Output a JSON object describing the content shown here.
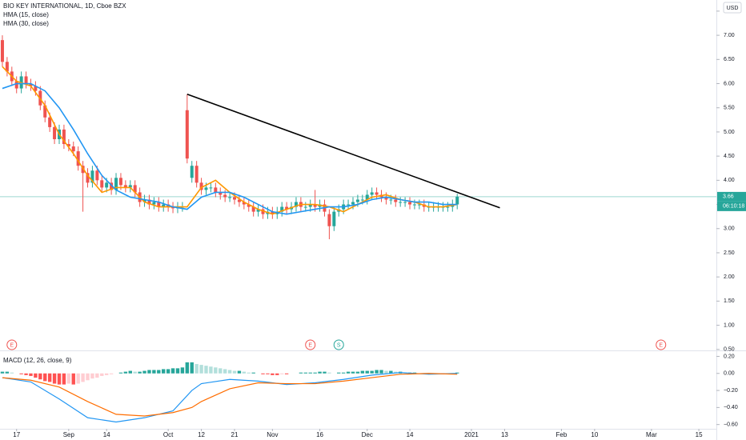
{
  "chart_data": [
    {
      "type": "candlestick",
      "title": "BIO KEY INTERNATIONAL, 1D, Cboe BZX",
      "currency": "USD",
      "xlim": [
        -0.5,
        150.7
      ],
      "xticks": [
        {
          "value": 3,
          "label": "17"
        },
        {
          "value": 14,
          "label": "Sep"
        },
        {
          "value": 22,
          "label": "14"
        },
        {
          "value": 35,
          "label": "Oct"
        },
        {
          "value": 42,
          "label": "12"
        },
        {
          "value": 49,
          "label": "21"
        },
        {
          "value": 57,
          "label": "Nov"
        },
        {
          "value": 67,
          "label": "16"
        },
        {
          "value": 77,
          "label": "Dec"
        },
        {
          "value": 86,
          "label": "14"
        },
        {
          "value": 99,
          "label": "2021"
        },
        {
          "value": 106,
          "label": "13"
        },
        {
          "value": 118,
          "label": "Feb"
        },
        {
          "value": 125,
          "label": "10"
        },
        {
          "value": 137,
          "label": "Mar"
        },
        {
          "value": 147,
          "label": "15"
        }
      ],
      "ylim": [
        0.48,
        7.73
      ],
      "yticks": [
        {
          "value": 0.5,
          "label": "0.50"
        },
        {
          "value": 1,
          "label": "1.00"
        },
        {
          "value": 1.5,
          "label": "1.50"
        },
        {
          "value": 2,
          "label": "2.00"
        },
        {
          "value": 2.5,
          "label": "2.50"
        },
        {
          "value": 3,
          "label": "3.00"
        },
        {
          "value": 3.5,
          "label": "3.50"
        },
        {
          "value": 4,
          "label": "4.00"
        },
        {
          "value": 4.5,
          "label": "4.50"
        },
        {
          "value": 5,
          "label": "5.00"
        },
        {
          "value": 5.5,
          "label": "5.50"
        },
        {
          "value": 6,
          "label": "6.00"
        },
        {
          "value": 6.5,
          "label": "6.50"
        },
        {
          "value": 7,
          "label": "7.00"
        },
        {
          "value": 7.5,
          "label": "7.50"
        }
      ],
      "grid": false,
      "up_color": "#26a69a",
      "down_color": "#ef5350",
      "open": [
        6.9,
        6.45,
        6.25,
        6.05,
        5.9,
        6.15,
        6.0,
        5.95,
        5.85,
        5.55,
        5.3,
        5.1,
        4.85,
        5.05,
        4.75,
        4.7,
        4.6,
        4.3,
        4.15,
        3.95,
        4.2,
        4.0,
        3.85,
        3.95,
        3.8,
        4.05,
        3.9,
        3.85,
        3.9,
        3.75,
        3.55,
        3.6,
        3.5,
        3.55,
        3.45,
        3.5,
        3.45,
        3.42,
        3.45,
        5.45,
        4.05,
        4.3,
        3.95,
        3.8,
        3.85,
        3.85,
        3.75,
        3.7,
        3.65,
        3.65,
        3.6,
        3.55,
        3.5,
        3.45,
        3.35,
        3.4,
        3.3,
        3.35,
        3.3,
        3.35,
        3.45,
        3.4,
        3.45,
        3.55,
        3.45,
        3.45,
        3.5,
        3.45,
        3.5,
        3.3,
        3.05,
        3.35,
        3.4,
        3.5,
        3.5,
        3.55,
        3.6,
        3.6,
        3.7,
        3.75,
        3.7,
        3.65,
        3.6,
        3.6,
        3.55,
        3.55,
        3.55,
        3.5,
        3.5,
        3.5,
        3.45,
        3.45,
        3.45,
        3.45,
        3.45,
        3.45,
        3.5
      ],
      "high": [
        7.0,
        6.55,
        6.35,
        6.15,
        6.25,
        6.25,
        6.1,
        6.05,
        5.95,
        5.65,
        5.4,
        5.2,
        5.15,
        5.15,
        4.85,
        4.8,
        4.7,
        4.4,
        4.25,
        4.3,
        4.3,
        4.1,
        4.05,
        4.05,
        4.15,
        4.15,
        4.0,
        4.0,
        4.0,
        3.85,
        3.7,
        3.7,
        3.65,
        3.65,
        3.6,
        3.6,
        3.55,
        3.55,
        3.55,
        5.78,
        4.4,
        4.4,
        4.05,
        3.95,
        3.95,
        3.95,
        3.85,
        3.8,
        3.75,
        3.75,
        3.7,
        3.65,
        3.6,
        3.55,
        3.5,
        3.5,
        3.45,
        3.45,
        3.45,
        3.55,
        3.55,
        3.55,
        3.65,
        3.65,
        3.55,
        3.6,
        3.8,
        3.6,
        3.6,
        3.4,
        3.45,
        3.5,
        3.6,
        3.6,
        3.65,
        3.7,
        3.7,
        3.8,
        3.85,
        3.85,
        3.8,
        3.75,
        3.7,
        3.7,
        3.65,
        3.65,
        3.65,
        3.6,
        3.6,
        3.6,
        3.55,
        3.55,
        3.55,
        3.55,
        3.55,
        3.6,
        3.72
      ],
      "low": [
        6.35,
        6.15,
        5.95,
        5.8,
        5.8,
        5.9,
        5.85,
        5.75,
        5.45,
        5.2,
        5.0,
        4.75,
        4.75,
        4.65,
        4.6,
        4.5,
        4.2,
        3.35,
        3.85,
        3.85,
        3.9,
        3.75,
        3.75,
        3.7,
        3.7,
        3.8,
        3.75,
        3.75,
        3.65,
        3.45,
        3.45,
        3.4,
        3.4,
        3.35,
        3.35,
        3.35,
        3.32,
        3.32,
        3.35,
        4.35,
        3.95,
        3.85,
        3.7,
        3.7,
        3.75,
        3.65,
        3.6,
        3.55,
        3.55,
        3.5,
        3.45,
        3.4,
        3.35,
        3.25,
        3.25,
        3.2,
        3.2,
        3.2,
        3.2,
        3.25,
        3.3,
        3.3,
        3.35,
        3.35,
        3.35,
        3.35,
        3.35,
        3.35,
        3.25,
        2.78,
        2.95,
        3.25,
        3.3,
        3.4,
        3.4,
        3.45,
        3.5,
        3.5,
        3.6,
        3.6,
        3.55,
        3.5,
        3.5,
        3.45,
        3.45,
        3.45,
        3.4,
        3.4,
        3.4,
        3.35,
        3.35,
        3.35,
        3.35,
        3.35,
        3.35,
        3.35,
        3.4
      ],
      "close": [
        6.45,
        6.25,
        6.05,
        5.9,
        6.15,
        6.0,
        5.95,
        5.85,
        5.55,
        5.3,
        5.1,
        4.85,
        5.05,
        4.75,
        4.7,
        4.6,
        4.3,
        4.15,
        3.95,
        4.2,
        4.0,
        3.85,
        3.95,
        3.8,
        4.05,
        3.9,
        3.85,
        3.9,
        3.75,
        3.55,
        3.6,
        3.5,
        3.55,
        3.45,
        3.5,
        3.45,
        3.42,
        3.45,
        3.45,
        4.45,
        4.3,
        3.95,
        3.8,
        3.85,
        3.85,
        3.75,
        3.7,
        3.65,
        3.65,
        3.6,
        3.55,
        3.5,
        3.45,
        3.35,
        3.4,
        3.3,
        3.35,
        3.3,
        3.35,
        3.45,
        3.4,
        3.45,
        3.55,
        3.45,
        3.45,
        3.5,
        3.45,
        3.5,
        3.35,
        3.05,
        3.35,
        3.4,
        3.5,
        3.5,
        3.55,
        3.6,
        3.6,
        3.7,
        3.75,
        3.7,
        3.65,
        3.6,
        3.6,
        3.55,
        3.55,
        3.55,
        3.5,
        3.5,
        3.5,
        3.45,
        3.45,
        3.45,
        3.45,
        3.45,
        3.45,
        3.5,
        3.66
      ],
      "overlays": [
        {
          "name": "HMA (15, close)",
          "color": "#ff9800",
          "x": [
            0,
            3,
            6,
            9,
            12,
            15,
            18,
            21,
            24,
            27,
            30,
            33,
            36,
            39,
            42,
            45,
            48,
            51,
            54,
            57,
            60,
            63,
            66,
            69,
            72,
            75,
            78,
            81,
            84,
            87,
            90,
            93,
            96
          ],
          "values": [
            6.35,
            6.05,
            5.95,
            5.55,
            4.95,
            4.55,
            4.1,
            3.75,
            3.85,
            3.85,
            3.55,
            3.45,
            3.45,
            3.45,
            3.85,
            4.0,
            3.75,
            3.55,
            3.4,
            3.3,
            3.4,
            3.5,
            3.5,
            3.45,
            3.35,
            3.5,
            3.65,
            3.7,
            3.6,
            3.55,
            3.45,
            3.45,
            3.5
          ]
        },
        {
          "name": "HMA (30, close)",
          "color": "#2196f3",
          "x": [
            0,
            3,
            6,
            9,
            12,
            15,
            18,
            21,
            24,
            27,
            30,
            33,
            36,
            39,
            42,
            45,
            48,
            51,
            54,
            57,
            60,
            63,
            66,
            69,
            72,
            75,
            78,
            81,
            84,
            87,
            90,
            93,
            96
          ],
          "values": [
            5.9,
            6.0,
            6.0,
            5.85,
            5.5,
            5.05,
            4.55,
            4.1,
            3.8,
            3.65,
            3.6,
            3.55,
            3.45,
            3.4,
            3.65,
            3.75,
            3.75,
            3.65,
            3.5,
            3.35,
            3.3,
            3.35,
            3.4,
            3.45,
            3.45,
            3.5,
            3.6,
            3.65,
            3.6,
            3.55,
            3.55,
            3.5,
            3.5
          ]
        }
      ],
      "trendline": {
        "color": "#000000",
        "x": [
          39,
          105
        ],
        "values": [
          5.78,
          3.43
        ]
      },
      "last_price": {
        "value": 3.66,
        "label": "3.66"
      },
      "countdown": "06:10:18",
      "events": [
        {
          "x": 2,
          "label": "E",
          "color": "#ef5350"
        },
        {
          "x": 65,
          "label": "E",
          "color": "#ef5350"
        },
        {
          "x": 71,
          "label": "S",
          "color": "#26a69a"
        },
        {
          "x": 139,
          "label": "E",
          "color": "#ef5350"
        }
      ]
    },
    {
      "type": "macd",
      "title": "MACD (12, 26, close, 9)",
      "ylim": [
        -0.65,
        0.27
      ],
      "yticks": [
        {
          "value": 0.2,
          "label": "0.20"
        },
        {
          "value": 0,
          "label": "0.00"
        },
        {
          "value": -0.2,
          "label": "−0.20"
        },
        {
          "value": -0.4,
          "label": "−0.40"
        },
        {
          "value": -0.6,
          "label": "−0.60"
        }
      ],
      "histogram": {
        "colors": {
          "up_rising": "#26a69a",
          "up_falling": "#b2dfdb",
          "down_falling": "#ff5252",
          "down_rising": "#ffcdd2"
        },
        "values": [
          0.02,
          0.02,
          0.01,
          0.0,
          -0.01,
          -0.02,
          -0.03,
          -0.05,
          -0.07,
          -0.09,
          -0.1,
          -0.12,
          -0.13,
          -0.13,
          -0.12,
          -0.13,
          -0.12,
          -0.1,
          -0.08,
          -0.06,
          -0.05,
          -0.03,
          -0.02,
          -0.01,
          0.0,
          0.01,
          0.02,
          0.03,
          0.02,
          0.02,
          0.03,
          0.04,
          0.04,
          0.04,
          0.05,
          0.05,
          0.06,
          0.06,
          0.07,
          0.13,
          0.13,
          0.11,
          0.1,
          0.09,
          0.08,
          0.07,
          0.06,
          0.05,
          0.04,
          0.03,
          0.03,
          0.02,
          0.01,
          0.01,
          0.0,
          -0.01,
          -0.01,
          -0.02,
          -0.02,
          -0.01,
          -0.01,
          0.0,
          0.0,
          0.01,
          0.01,
          0.01,
          0.01,
          0.02,
          0.02,
          0.01,
          0.0,
          0.01,
          0.01,
          0.02,
          0.02,
          0.02,
          0.03,
          0.03,
          0.03,
          0.04,
          0.04,
          0.03,
          0.03,
          0.02,
          0.02,
          0.01,
          0.01,
          0.01,
          0.0,
          0.0,
          -0.01,
          -0.01,
          -0.01,
          -0.01,
          -0.01,
          0.0,
          0.01
        ]
      },
      "series": [
        {
          "color": "#2196f3",
          "x": [
            0,
            6,
            12,
            18,
            24,
            30,
            36,
            40,
            42,
            48,
            54,
            60,
            66,
            72,
            78,
            84,
            90,
            96
          ],
          "values": [
            -0.05,
            -0.1,
            -0.3,
            -0.52,
            -0.57,
            -0.52,
            -0.44,
            -0.2,
            -0.12,
            -0.07,
            -0.09,
            -0.13,
            -0.11,
            -0.07,
            -0.02,
            0.01,
            -0.01,
            0.0
          ]
        },
        {
          "color": "#ff6d00",
          "x": [
            0,
            6,
            12,
            18,
            24,
            30,
            36,
            40,
            42,
            48,
            54,
            60,
            66,
            72,
            78,
            84,
            90,
            96
          ],
          "values": [
            -0.05,
            -0.08,
            -0.16,
            -0.33,
            -0.48,
            -0.5,
            -0.46,
            -0.4,
            -0.33,
            -0.18,
            -0.11,
            -0.12,
            -0.12,
            -0.09,
            -0.05,
            -0.01,
            0.0,
            -0.01
          ]
        }
      ]
    }
  ]
}
